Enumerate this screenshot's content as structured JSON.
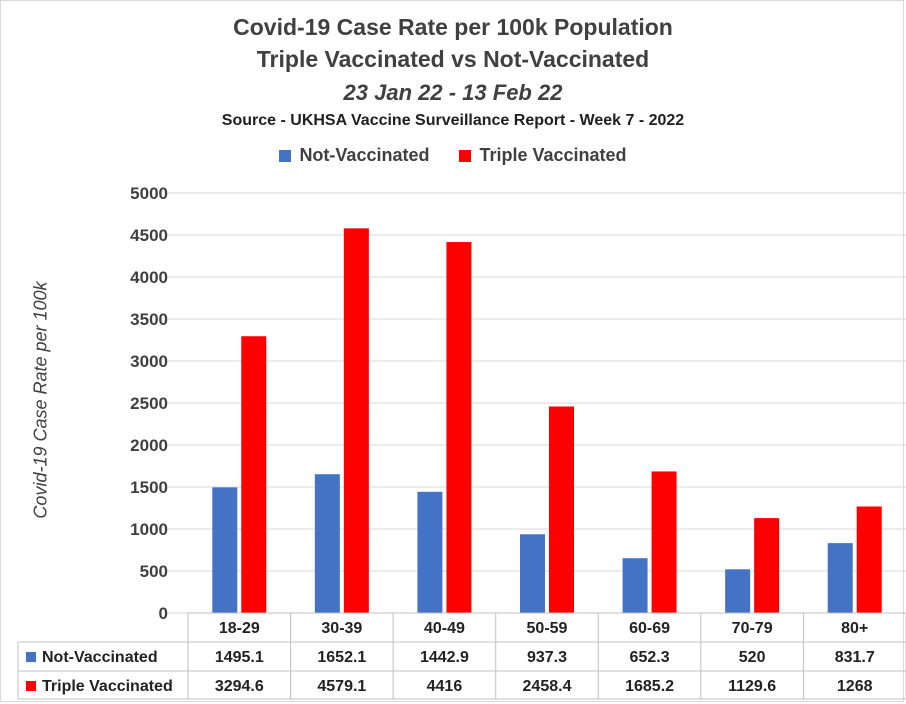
{
  "chart_data": {
    "type": "bar",
    "title": "Covid-19 Case Rate per 100k Population",
    "subtitle": "Triple Vaccinated vs Not-Vaccinated",
    "date_range": "23 Jan 22 - 13 Feb 22",
    "source": "Source - UKHSA Vaccine Surveillance Report - Week 7 - 2022",
    "ylabel": "Covid-19 Case Rate per 100k",
    "xlabel": "",
    "ylim": [
      0,
      5000
    ],
    "yticks": [
      "0",
      "500",
      "1000",
      "1500",
      "2000",
      "2500",
      "3000",
      "3500",
      "4000",
      "4500",
      "5000"
    ],
    "grid": true,
    "legend_position": "top",
    "categories": [
      "18-29",
      "30-39",
      "40-49",
      "50-59",
      "60-69",
      "70-79",
      "80+"
    ],
    "series": [
      {
        "name": "Not-Vaccinated",
        "color": "#4472c4",
        "values": [
          1495.1,
          1652.1,
          1442.9,
          937.3,
          652.3,
          520,
          831.7
        ],
        "labels": [
          "1495.1",
          "1652.1",
          "1442.9",
          "937.3",
          "652.3",
          "520",
          "831.7"
        ]
      },
      {
        "name": "Triple Vaccinated",
        "color": "#ff0000",
        "values": [
          3294.6,
          4579.1,
          4416,
          2458.4,
          1685.2,
          1129.6,
          1268
        ],
        "labels": [
          "3294.6",
          "4579.1",
          "4416",
          "2458.4",
          "1685.2",
          "1129.6",
          "1268"
        ]
      }
    ]
  }
}
